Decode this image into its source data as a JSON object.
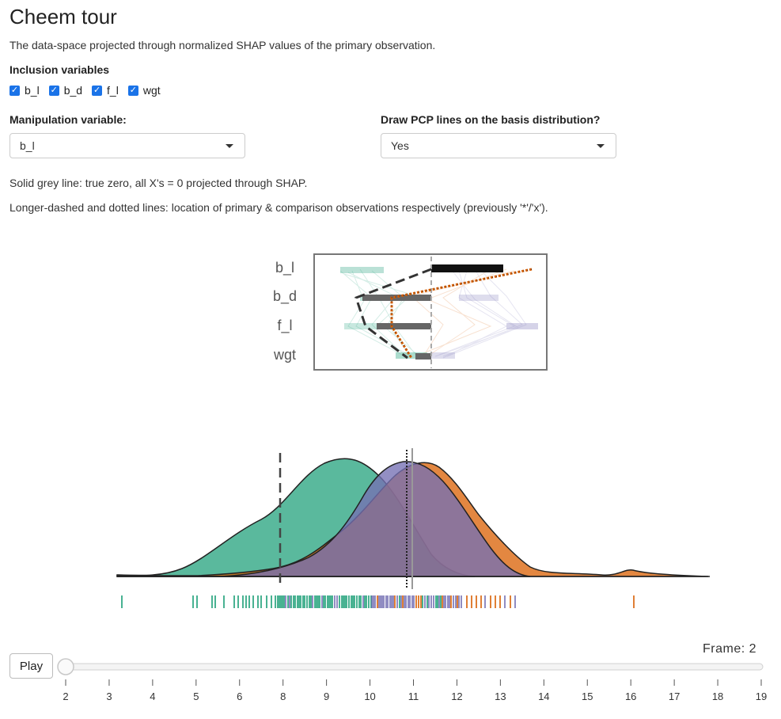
{
  "title": "Cheem tour",
  "subtitle": "The data-space projected through normalized SHAP values of the primary observation.",
  "inclusion": {
    "label": "Inclusion variables",
    "items": [
      {
        "label": "b_l",
        "checked": true
      },
      {
        "label": "b_d",
        "checked": true
      },
      {
        "label": "f_l",
        "checked": true
      },
      {
        "label": "wgt",
        "checked": true
      }
    ]
  },
  "manip": {
    "label": "Manipulation variable:",
    "value": "b_l",
    "icon": "chevron-down-icon"
  },
  "pcp": {
    "label": "Draw PCP lines on the basis distribution?",
    "value": "Yes",
    "icon": "chevron-down-icon"
  },
  "notes": {
    "line1": "Solid grey line: true zero, all X's = 0 projected through SHAP.",
    "line2": "Longer-dashed and dotted lines: location of primary & comparison observations respectively (previously '*'/'x')."
  },
  "basis": {
    "variables": [
      "b_l",
      "b_d",
      "f_l",
      "wgt"
    ]
  },
  "player": {
    "play_label": "Play",
    "frame_label": "Frame: 2",
    "frame_value": 2,
    "ticks": [
      "2",
      "3",
      "4",
      "5",
      "6",
      "8",
      "9",
      "10",
      "11",
      "12",
      "13",
      "14",
      "15",
      "16",
      "17",
      "18",
      "19"
    ]
  },
  "colors": {
    "green": "#1b9e77",
    "orange": "#d95f02",
    "purple": "#7570b3",
    "accent": "#1a73e8"
  }
}
